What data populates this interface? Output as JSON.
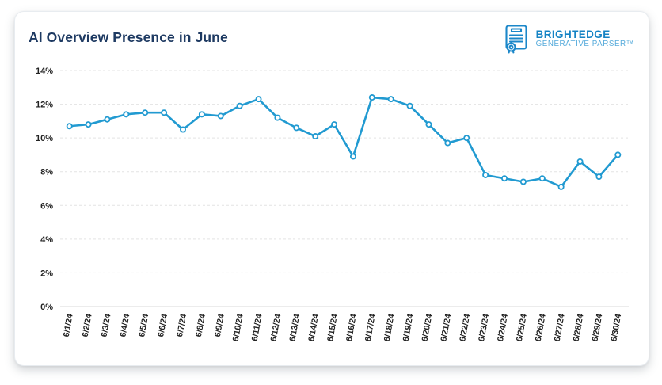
{
  "logo": {
    "brand": "BRIGHTEDGE",
    "subtitle": "GENERATIVE PARSER™"
  },
  "colors": {
    "line": "#219ad1",
    "marker_fill": "#ffffff",
    "title": "#1e3a62",
    "axis_label": "#222222",
    "gridline": "#e3e3e3",
    "zero_line": "#d8d8d8",
    "logo_brand": "#1583c4",
    "logo_subtitle": "#56abdb"
  },
  "chart_data": {
    "type": "line",
    "title": "AI Overview Presence in June",
    "xlabel": "",
    "ylabel": "",
    "ylim": [
      0,
      14
    ],
    "ytick_step": 2,
    "ytick_labels": [
      "0%",
      "2%",
      "4%",
      "6%",
      "8%",
      "10%",
      "12%",
      "14%"
    ],
    "grid": "horizontal-dashed",
    "legend": "none",
    "marker": "open-circle",
    "x": [
      "6/1/24",
      "6/2/24",
      "6/3/24",
      "6/4/24",
      "6/5/24",
      "6/6/24",
      "6/7/24",
      "6/8/24",
      "6/9/24",
      "6/10/24",
      "6/11/24",
      "6/12/24",
      "6/13/24",
      "6/14/24",
      "6/15/24",
      "6/16/24",
      "6/17/24",
      "6/18/24",
      "6/19/24",
      "6/20/24",
      "6/21/24",
      "6/22/24",
      "6/23/24",
      "6/24/24",
      "6/25/24",
      "6/26/24",
      "6/27/24",
      "6/28/24",
      "6/29/24",
      "6/30/24"
    ],
    "series": [
      {
        "name": "AI Overview Presence",
        "values": [
          10.7,
          10.8,
          11.1,
          11.4,
          11.5,
          11.5,
          10.5,
          11.4,
          11.3,
          11.9,
          12.3,
          11.2,
          10.6,
          10.1,
          10.8,
          8.9,
          12.4,
          12.3,
          11.9,
          10.8,
          9.7,
          10.0,
          7.8,
          7.6,
          7.4,
          7.6,
          7.1,
          8.6,
          7.7,
          9.0
        ]
      }
    ]
  }
}
